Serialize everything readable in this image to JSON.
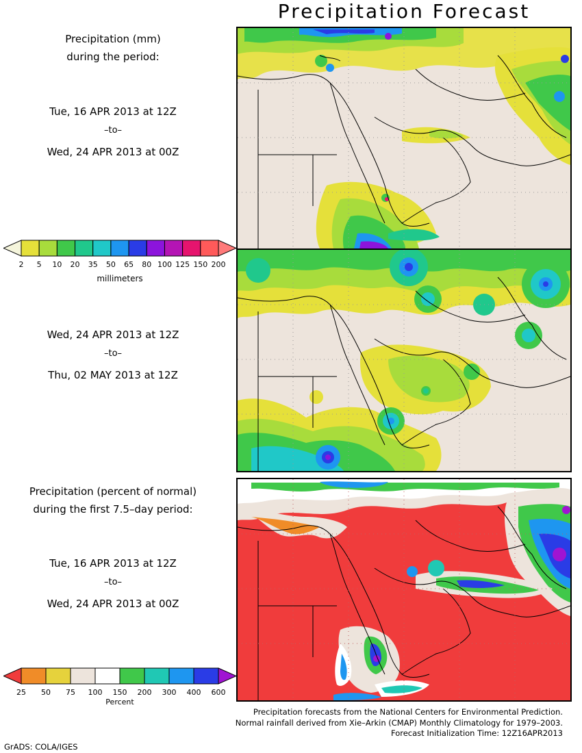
{
  "title": "Precipitation Forecast",
  "panel1": {
    "heading_line1": "Precipitation (mm)",
    "heading_line2": "during the period:",
    "start": "Tue, 16 APR 2013 at 12Z",
    "sep": "–to–",
    "end": "Wed, 24 APR 2013 at 00Z"
  },
  "panel2": {
    "start": "Wed, 24 APR 2013 at 12Z",
    "sep": "–to–",
    "end": "Thu, 02 MAY 2013 at 12Z"
  },
  "panel3": {
    "heading_line1": "Precipitation (percent of normal)",
    "heading_line2": "during the first 7.5–day period:",
    "start": "Tue, 16 APR 2013 at 12Z",
    "sep": "–to–",
    "end": "Wed, 24 APR 2013 at 00Z"
  },
  "mm_scale": {
    "unit": "millimeters",
    "ticks": [
      "2",
      "5",
      "10",
      "20",
      "35",
      "50",
      "65",
      "80",
      "100",
      "125",
      "150",
      "200"
    ],
    "colors": [
      "#f5f5dc",
      "#e5e03a",
      "#a8dc3c",
      "#40c84a",
      "#20c88c",
      "#20c8c8",
      "#1e96f0",
      "#2a3ce6",
      "#8c14dc",
      "#b414b4",
      "#e6146e",
      "#ff5a5a",
      "#ff7a7a"
    ]
  },
  "pct_scale": {
    "unit": "Percent",
    "ticks": [
      "25",
      "50",
      "75",
      "100",
      "150",
      "200",
      "300",
      "400",
      "600"
    ],
    "colors": [
      "#f03c3c",
      "#f08c28",
      "#e6d23c",
      "#ede4dc",
      "#ffffff",
      "#40c84a",
      "#20c8b4",
      "#1e96f0",
      "#2a3ce6",
      "#a014d2"
    ]
  },
  "colors": {
    "land": "#ede4dc",
    "red_bg": "#f03c3c"
  },
  "credits": {
    "line1": "Precipitation forecasts from the National Centers for Environmental Prediction.",
    "line2": "Normal rainfall derived from Xie–Arkin (CMAP) Monthly Climatology for 1979–2003.",
    "line3": "Forecast Initialization Time: 12Z16APR2013"
  },
  "software": "GrADS: COLA/IGES"
}
